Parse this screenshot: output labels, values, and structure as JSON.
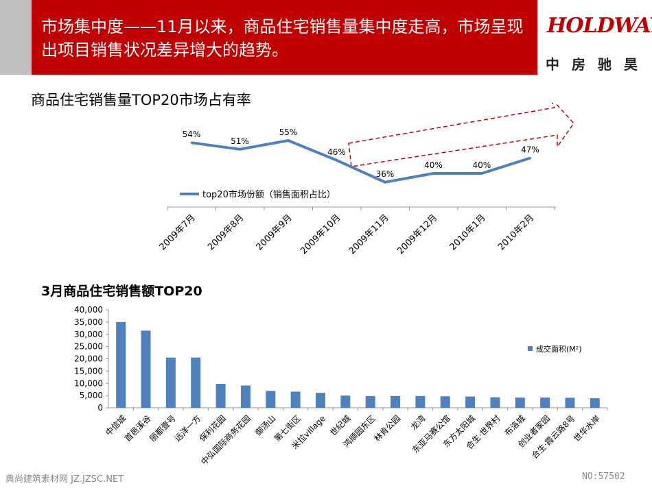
{
  "header": {
    "title": "市场集中度——11月以来，商品住宅销售量集中度走高，市场呈现出项目销售状况差异增大的趋势。",
    "logo_en": "HOLDWAYS",
    "logo_cn": "中房驰昊"
  },
  "colors": {
    "header_bg": "#c00000",
    "series": "#4f81bd",
    "arrow": "#c00000"
  },
  "footer": {
    "left": "典尚建筑素材网 JZ.JZSC.NET",
    "right": "NO:57502"
  },
  "chart_data": [
    {
      "type": "line",
      "title": "商品住宅销售量TOP20市场占有率",
      "categories": [
        "2009年7月",
        "2009年8月",
        "2009年9月",
        "2009年10月",
        "2009年11月",
        "2009年12月",
        "2010年1月",
        "2010年2月"
      ],
      "series": [
        {
          "name": "top20市场份额（销售面积占比）",
          "values": [
            54,
            51,
            55,
            46,
            36,
            40,
            40,
            47
          ],
          "labels": [
            "54%",
            "51%",
            "55%",
            "46%",
            "36%",
            "40%",
            "40%",
            "47%"
          ]
        }
      ],
      "legend": "inside-left"
    },
    {
      "type": "bar",
      "title": "3月商品住宅销售额TOP20",
      "categories": [
        "中信城",
        "首邑溪谷",
        "丽都壹号",
        "远洋一方",
        "保利花园",
        "中弘国际商务花园",
        "御汤山",
        "第七街区",
        "米拉village",
        "世纪城",
        "鸿顺园东区",
        "林肯公园",
        "龙湾",
        "东亚马赛公馆",
        "东方太阳城",
        "合生·世界村",
        "布洛城",
        "创业者家园",
        "合生·霞云路8号",
        "世华水岸"
      ],
      "series": [
        {
          "name": "成交面积(M²)",
          "values": [
            35000,
            31500,
            20500,
            20500,
            9800,
            9100,
            6900,
            6600,
            6100,
            5000,
            4800,
            4800,
            4800,
            4700,
            4600,
            4300,
            4200,
            4200,
            4100,
            3900
          ]
        }
      ],
      "yticks": [
        "0",
        "5,000",
        "10,000",
        "15,000",
        "20,000",
        "25,000",
        "30,000",
        "35,000",
        "40,000"
      ],
      "ylim": [
        0,
        40000
      ],
      "legend": "right"
    }
  ]
}
